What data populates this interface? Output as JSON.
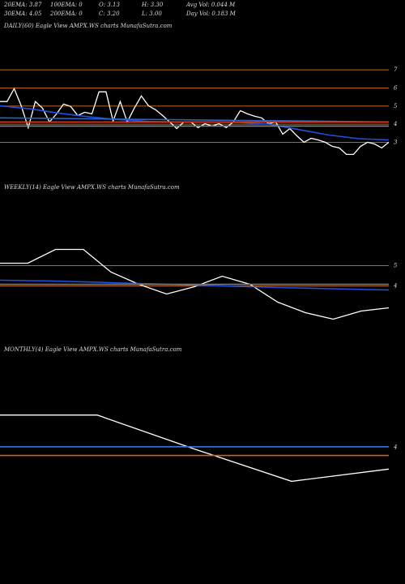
{
  "header": {
    "row1": [
      "20EMA: 3.87",
      "100EMA: 0",
      "O: 3.13",
      "H: 3.30",
      "Avg Vol: 0.044  M"
    ],
    "row2": [
      "30EMA: 4.05",
      "200EMA: 0",
      "C: 3.20",
      "L: 3.00",
      "Day Vol: 0.183  M"
    ]
  },
  "chart_data": [
    {
      "type": "line",
      "title": "DAILY(60) Eagle  View  AMPX.WS charts MunafaSutra.com",
      "ylim": [
        1.9,
        7.5
      ],
      "yticks": [
        3,
        4,
        5,
        6,
        7
      ],
      "grid": true,
      "grid_color": "#b5651d",
      "series": [
        {
          "color": "#ffffff",
          "values": [
            5.25,
            5.25,
            5.97,
            5.02,
            3.81,
            5.25,
            4.89,
            4.12,
            4.57,
            5.11,
            4.98,
            4.48,
            4.66,
            4.57,
            5.79,
            5.79,
            4.17,
            5.25,
            4.12,
            4.89,
            5.56,
            5.02,
            4.8,
            4.48,
            4.12,
            3.76,
            4.12,
            4.12,
            3.81,
            4.03,
            3.9,
            4.03,
            3.81,
            4.12,
            4.75,
            4.57,
            4.44,
            4.35,
            4.03,
            4.12,
            3.45,
            3.76,
            3.36,
            3.0,
            3.22,
            3.13,
            3.0,
            2.78,
            2.69,
            2.33,
            2.33,
            2.78,
            3.0,
            2.91,
            2.69,
            3.0
          ]
        },
        {
          "color": "#2050e0",
          "values": [
            5.02,
            4.85,
            4.6,
            4.4,
            4.25,
            4.15,
            4.12,
            4.12,
            4.1,
            4.0,
            3.7,
            3.4,
            3.2,
            3.13
          ]
        },
        {
          "color": "#3060c0",
          "values": [
            4.35,
            4.33,
            4.3,
            4.27,
            4.25,
            4.22,
            4.2,
            4.18,
            4.15,
            4.12
          ]
        },
        {
          "color": "#808080",
          "values": [
            3.9,
            3.9
          ]
        },
        {
          "color": "#d04020",
          "values": [
            4.12,
            4.12
          ]
        }
      ]
    },
    {
      "type": "line",
      "title": "WEEKLY(14) Eagle  View  AMPX.WS charts MunafaSutra.com",
      "ylim": [
        1.3,
        8.5
      ],
      "yticks": [
        4,
        5
      ],
      "grid": true,
      "grid_color": "#b5651d",
      "series": [
        {
          "color": "#ffffff",
          "values": [
            5.12,
            5.12,
            5.8,
            5.8,
            4.68,
            4.08,
            3.6,
            3.96,
            4.48,
            4.08,
            3.2,
            2.68,
            2.36,
            2.76,
            2.92
          ]
        },
        {
          "color": "#2050e0",
          "values": [
            4.28,
            4.24,
            4.16,
            4.08,
            4.0,
            3.92,
            3.86,
            3.8
          ]
        },
        {
          "color": "#808080",
          "values": [
            4.08,
            4.08
          ]
        }
      ]
    },
    {
      "type": "line",
      "title": "MONTHLY(4) Eagle  View  AMPX.WS charts MunafaSutra.com",
      "ylim": [
        0,
        6.8
      ],
      "yticks": [
        4
      ],
      "grid": false,
      "grid_color": "#b5651d",
      "series": [
        {
          "color": "#ffffff",
          "values": [
            5.0,
            5.0,
            3.95,
            2.95,
            3.33
          ]
        },
        {
          "color": "#4070e0",
          "values": [
            4.02,
            4.02
          ]
        },
        {
          "color": "#c8641e",
          "values": [
            3.75,
            3.75
          ]
        }
      ]
    }
  ]
}
